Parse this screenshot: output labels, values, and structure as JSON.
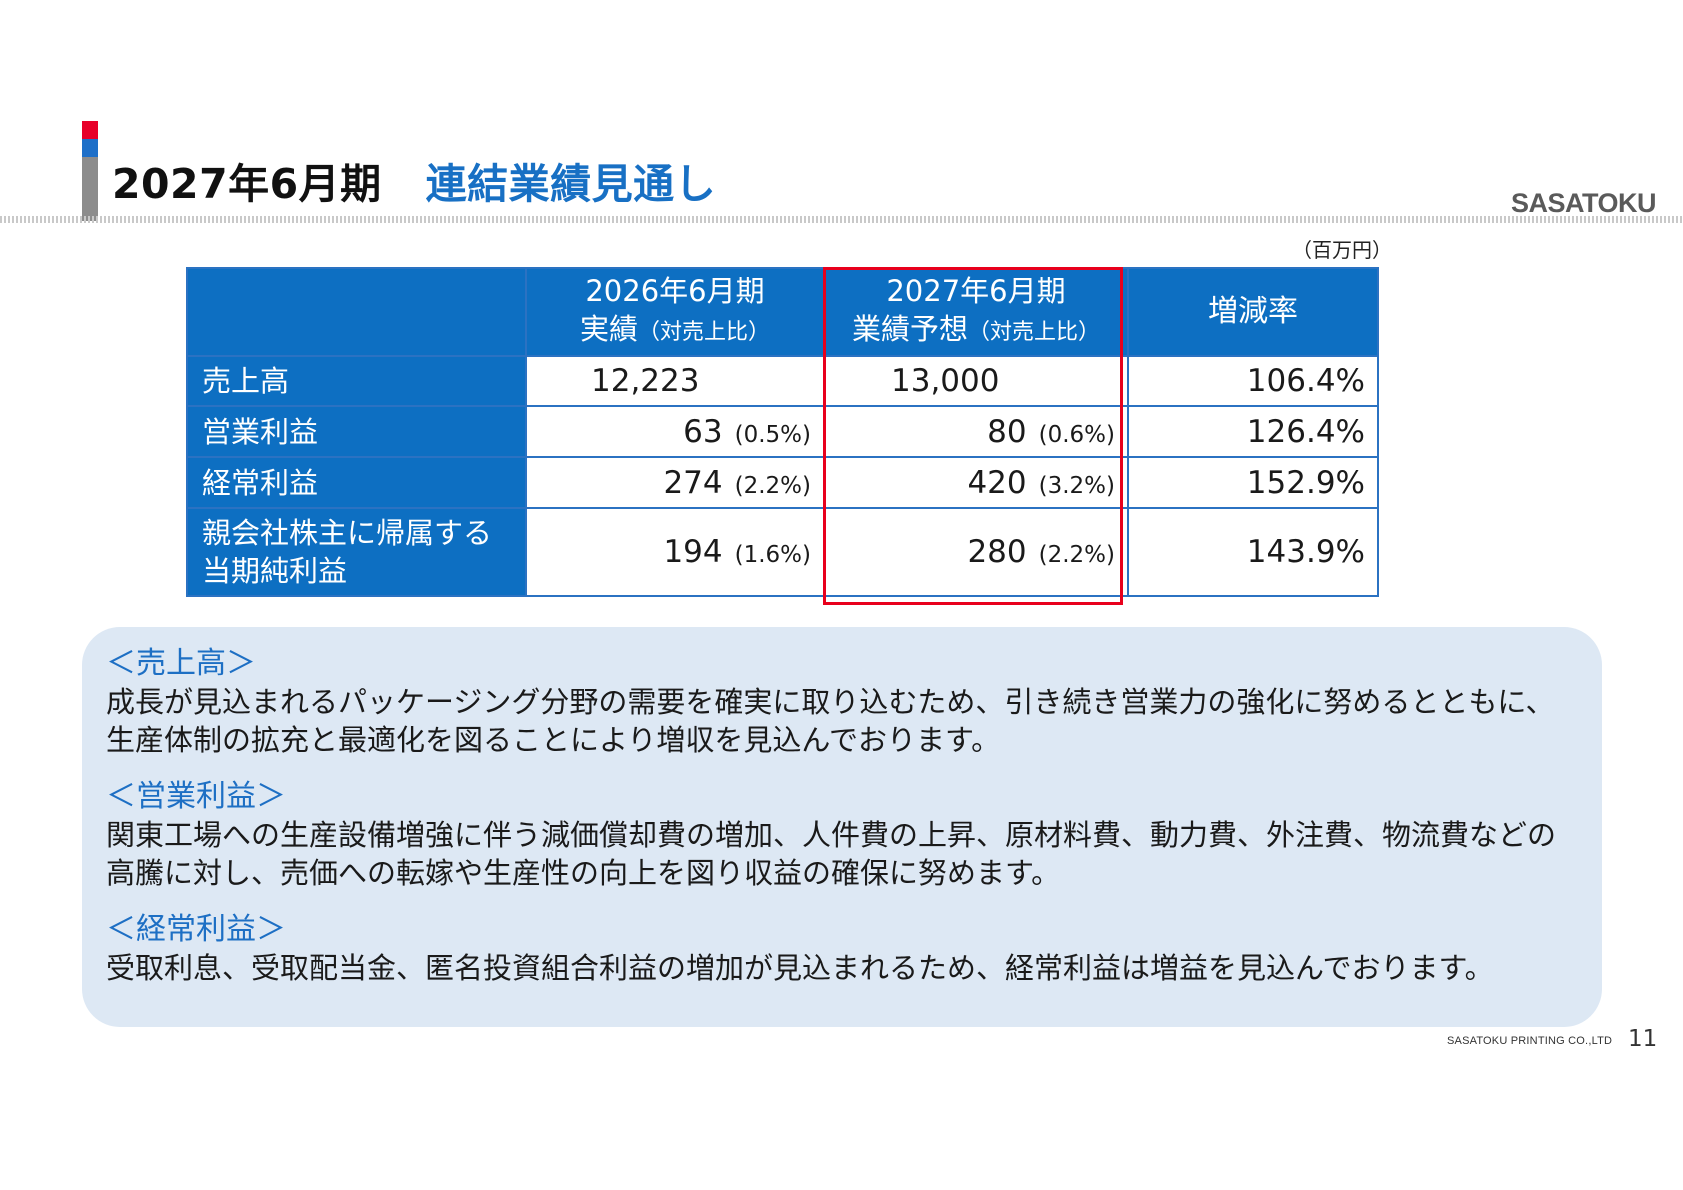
{
  "header": {
    "title_period": "2027年6月期",
    "title_subject": "連結業績見通し",
    "logo_text": "SASATOKU",
    "accent_colors": [
      "#e8002a",
      "#1e6fc8",
      "#8c8c8c"
    ]
  },
  "table": {
    "unit_note": "（百万円）",
    "columns": [
      {
        "line1": "2026年6月期",
        "line2": "実績",
        "line2_small": "（対売上比）"
      },
      {
        "line1": "2027年6月期",
        "line2": "業績予想",
        "line2_small": "（対売上比）"
      },
      {
        "label": "増減率"
      }
    ],
    "rows": [
      {
        "label": "売上高",
        "fy2026": "12,223",
        "fy2026_ratio": "",
        "fy2027": "13,000",
        "fy2027_ratio": "",
        "change": "106.4%"
      },
      {
        "label": "営業利益",
        "fy2026": "63",
        "fy2026_ratio": "(0.5%)",
        "fy2027": "80",
        "fy2027_ratio": "(0.6%)",
        "change": "126.4%"
      },
      {
        "label": "経常利益",
        "fy2026": "274",
        "fy2026_ratio": "(2.2%)",
        "fy2027": "420",
        "fy2027_ratio": "(3.2%)",
        "change": "152.9%"
      },
      {
        "label_line1": "親会社株主に帰属する",
        "label_line2": "当期純利益",
        "fy2026": "194",
        "fy2026_ratio": "(1.6%)",
        "fy2027": "280",
        "fy2027_ratio": "(2.2%)",
        "change": "143.9%"
      }
    ],
    "header_bg": "#0d6fc2",
    "highlight_color": "#e8001c"
  },
  "notes": [
    {
      "heading": "＜売上高＞",
      "lines": [
        "成長が見込まれるパッケージング分野の需要を確実に取り込むため、引き続き営業力の強化に努めるとともに、",
        "生産体制の拡充と最適化を図ることにより増収を見込んでおります。"
      ]
    },
    {
      "heading": "＜営業利益＞",
      "lines": [
        "関東工場への生産設備増強に伴う減価償却費の増加、人件費の上昇、原材料費、動力費、外注費、物流費などの",
        "高騰に対し、売価への転嫁や生産性の向上を図り収益の確保に努めます。"
      ]
    },
    {
      "heading": "＜経常利益＞",
      "lines": [
        "受取利息、受取配当金、匿名投資組合利益の増加が見込まれるため、経常利益は増益を見込んでおります。"
      ]
    }
  ],
  "footer": {
    "company": "SASATOKU PRINTING CO.,LTD",
    "page_number": "11"
  }
}
